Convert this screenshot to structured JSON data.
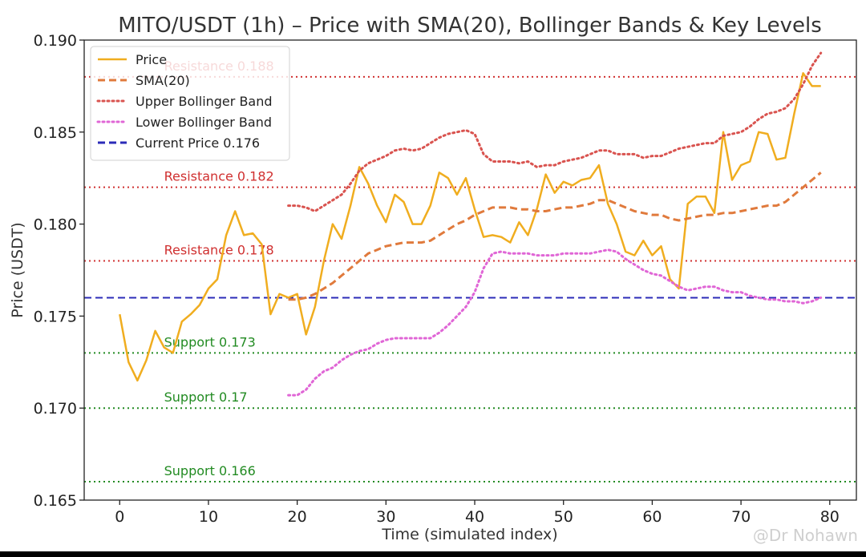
{
  "watermark": "@Dr Nohawn",
  "chart_data": {
    "type": "line",
    "title": "MITO/USDT (1h) – Price with SMA(20), Bollinger Bands & Key Levels",
    "xlabel": "Time (simulated index)",
    "ylabel": "Price (USDT)",
    "xlim": [
      -4,
      83
    ],
    "ylim": [
      0.165,
      0.19
    ],
    "xticks": [
      0,
      10,
      20,
      30,
      40,
      50,
      60,
      70,
      80
    ],
    "yticks": [
      "0.165",
      "0.170",
      "0.175",
      "0.180",
      "0.185",
      "0.190"
    ],
    "grid": false,
    "legend_position": "upper-left",
    "series": [
      {
        "name": "Price",
        "color": "#f0ad1f",
        "style": "solid",
        "x": [
          0,
          1,
          2,
          3,
          4,
          5,
          6,
          7,
          8,
          9,
          10,
          11,
          12,
          13,
          14,
          15,
          16,
          17,
          18,
          19,
          20,
          21,
          22,
          23,
          24,
          25,
          26,
          27,
          28,
          29,
          30,
          31,
          32,
          33,
          34,
          35,
          36,
          37,
          38,
          39,
          40,
          41,
          42,
          43,
          44,
          45,
          46,
          47,
          48,
          49,
          50,
          51,
          52,
          53,
          54,
          55,
          56,
          57,
          58,
          59,
          60,
          61,
          62,
          63,
          64,
          65,
          66,
          67,
          68,
          69,
          70,
          71,
          72,
          73,
          74,
          75,
          76,
          77,
          78,
          79
        ],
        "values": [
          0.1751,
          0.1725,
          0.1715,
          0.1726,
          0.1742,
          0.1733,
          0.173,
          0.1747,
          0.1751,
          0.1756,
          0.1765,
          0.177,
          0.1794,
          0.1807,
          0.1794,
          0.1795,
          0.1789,
          0.1751,
          0.1762,
          0.176,
          0.1762,
          0.174,
          0.1755,
          0.178,
          0.18,
          0.1792,
          0.181,
          0.1831,
          0.1822,
          0.181,
          0.1801,
          0.1816,
          0.1812,
          0.18,
          0.18,
          0.181,
          0.1828,
          0.1825,
          0.1816,
          0.1825,
          0.1808,
          0.1793,
          0.1794,
          0.1793,
          0.179,
          0.1801,
          0.1794,
          0.1808,
          0.1827,
          0.1817,
          0.1823,
          0.1821,
          0.1824,
          0.1825,
          0.1832,
          0.1811,
          0.18,
          0.1785,
          0.1783,
          0.1791,
          0.1783,
          0.1788,
          0.177,
          0.1765,
          0.1811,
          0.1815,
          0.1815,
          0.1806,
          0.185,
          0.1824,
          0.1832,
          0.1834,
          0.185,
          0.1849,
          0.1835,
          0.1836,
          0.186,
          0.1882,
          0.1875,
          0.1875
        ]
      },
      {
        "name": "SMA(20)",
        "color": "#e07a3c",
        "style": "dashed",
        "x": [
          19,
          20,
          21,
          22,
          23,
          24,
          25,
          26,
          27,
          28,
          29,
          30,
          31,
          32,
          33,
          34,
          35,
          36,
          37,
          38,
          39,
          40,
          41,
          42,
          43,
          44,
          45,
          46,
          47,
          48,
          49,
          50,
          51,
          52,
          53,
          54,
          55,
          56,
          57,
          58,
          59,
          60,
          61,
          62,
          63,
          64,
          65,
          66,
          67,
          68,
          69,
          70,
          71,
          72,
          73,
          74,
          75,
          76,
          77,
          78,
          79
        ],
        "values": [
          0.1759,
          0.1759,
          0.176,
          0.1762,
          0.1765,
          0.1768,
          0.1772,
          0.1776,
          0.178,
          0.1784,
          0.1786,
          0.1788,
          0.1789,
          0.179,
          0.179,
          0.179,
          0.1791,
          0.1794,
          0.1797,
          0.18,
          0.1802,
          0.1805,
          0.1807,
          0.1809,
          0.1809,
          0.1809,
          0.1808,
          0.1808,
          0.1807,
          0.1807,
          0.1808,
          0.1809,
          0.1809,
          0.181,
          0.1811,
          0.1813,
          0.1813,
          0.1811,
          0.1809,
          0.1807,
          0.1806,
          0.1805,
          0.1805,
          0.1803,
          0.1802,
          0.1803,
          0.1804,
          0.1805,
          0.1805,
          0.1806,
          0.1806,
          0.1807,
          0.1808,
          0.1809,
          0.181,
          0.181,
          0.1812,
          0.1816,
          0.182,
          0.1824,
          0.1828
        ]
      },
      {
        "name": "Upper Bollinger Band",
        "color": "#d9534f",
        "style": "dotted",
        "x": [
          19,
          20,
          21,
          22,
          23,
          24,
          25,
          26,
          27,
          28,
          29,
          30,
          31,
          32,
          33,
          34,
          35,
          36,
          37,
          38,
          39,
          40,
          41,
          42,
          43,
          44,
          45,
          46,
          47,
          48,
          49,
          50,
          51,
          52,
          53,
          54,
          55,
          56,
          57,
          58,
          59,
          60,
          61,
          62,
          63,
          64,
          65,
          66,
          67,
          68,
          69,
          70,
          71,
          72,
          73,
          74,
          75,
          76,
          77,
          78,
          79
        ],
        "values": [
          0.181,
          0.181,
          0.1809,
          0.1807,
          0.181,
          0.1813,
          0.1816,
          0.1822,
          0.1829,
          0.1833,
          0.1835,
          0.1837,
          0.184,
          0.1841,
          0.184,
          0.1841,
          0.1844,
          0.1847,
          0.1849,
          0.185,
          0.1851,
          0.1849,
          0.1838,
          0.1834,
          0.1834,
          0.1834,
          0.1833,
          0.1834,
          0.1831,
          0.1832,
          0.1832,
          0.1834,
          0.1835,
          0.1836,
          0.1838,
          0.184,
          0.184,
          0.1838,
          0.1838,
          0.1838,
          0.1836,
          0.1837,
          0.1837,
          0.1839,
          0.1841,
          0.1842,
          0.1843,
          0.1844,
          0.1844,
          0.1848,
          0.1849,
          0.185,
          0.1853,
          0.1857,
          0.186,
          0.1861,
          0.1863,
          0.1868,
          0.1876,
          0.1886,
          0.1893
        ]
      },
      {
        "name": "Lower Bollinger Band",
        "color": "#e066d6",
        "style": "dotted",
        "x": [
          19,
          20,
          21,
          22,
          23,
          24,
          25,
          26,
          27,
          28,
          29,
          30,
          31,
          32,
          33,
          34,
          35,
          36,
          37,
          38,
          39,
          40,
          41,
          42,
          43,
          44,
          45,
          46,
          47,
          48,
          49,
          50,
          51,
          52,
          53,
          54,
          55,
          56,
          57,
          58,
          59,
          60,
          61,
          62,
          63,
          64,
          65,
          66,
          67,
          68,
          69,
          70,
          71,
          72,
          73,
          74,
          75,
          76,
          77,
          78,
          79
        ],
        "values": [
          0.1707,
          0.1707,
          0.171,
          0.1716,
          0.172,
          0.1722,
          0.1726,
          0.1729,
          0.1731,
          0.1732,
          0.1735,
          0.1737,
          0.1738,
          0.1738,
          0.1738,
          0.1738,
          0.1738,
          0.1741,
          0.1745,
          0.175,
          0.1755,
          0.1763,
          0.1776,
          0.1784,
          0.1785,
          0.1784,
          0.1784,
          0.1784,
          0.1783,
          0.1783,
          0.1783,
          0.1784,
          0.1784,
          0.1784,
          0.1784,
          0.1785,
          0.1786,
          0.1785,
          0.1781,
          0.1778,
          0.1775,
          0.1773,
          0.1772,
          0.1769,
          0.1766,
          0.1764,
          0.1765,
          0.1766,
          0.1766,
          0.1764,
          0.1763,
          0.1763,
          0.1761,
          0.176,
          0.1759,
          0.1759,
          0.1758,
          0.1758,
          0.1757,
          0.1758,
          0.176
        ]
      }
    ],
    "hlines": [
      {
        "name": "Current Price 0.176",
        "value": 0.176,
        "color": "#2c2cb8",
        "style": "dashed",
        "in_legend": true
      },
      {
        "label": "Resistance 0.188",
        "value": 0.188,
        "color": "#d03030",
        "style": "dotted"
      },
      {
        "label": "Resistance 0.182",
        "value": 0.182,
        "color": "#d03030",
        "style": "dotted"
      },
      {
        "label": "Resistance 0.178",
        "value": 0.178,
        "color": "#d03030",
        "style": "dotted"
      },
      {
        "label": "Support 0.173",
        "value": 0.173,
        "color": "#228b22",
        "style": "dotted"
      },
      {
        "label": "Support 0.17",
        "value": 0.17,
        "color": "#228b22",
        "style": "dotted"
      },
      {
        "label": "Support 0.166",
        "value": 0.166,
        "color": "#228b22",
        "style": "dotted"
      }
    ],
    "hline_label_x": 5
  }
}
